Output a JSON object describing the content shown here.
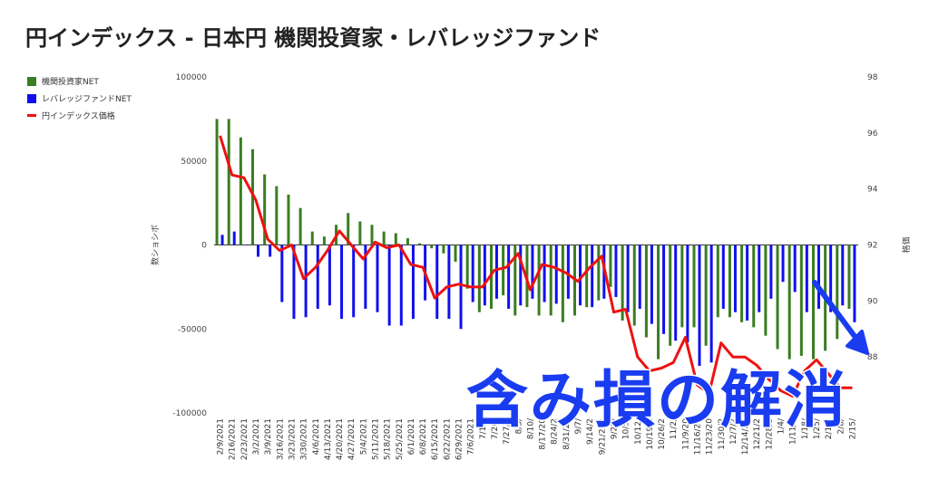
{
  "title": "円インデックス - 日本円 機関投資家・レバレッジファンド",
  "overlay_text": "含み損の解消",
  "chart_data": {
    "type": "bar",
    "xlabel": "",
    "ylabel": "数ショシボ",
    "y2label": "格価",
    "ylim": [
      -100000,
      100000
    ],
    "y2lim": [
      86,
      98
    ],
    "yticks": [
      "100000",
      "50000",
      "0",
      "-50000",
      "-100000"
    ],
    "y2ticks": [
      "98",
      "96",
      "94",
      "92",
      "90",
      "88"
    ],
    "xtick_labels": [
      "2/9/2021",
      "2/16/2021",
      "2/23/2021",
      "3/2/2021",
      "3/9/2021",
      "3/16/2021",
      "3/23/2021",
      "3/30/2021",
      "4/6/2021",
      "4/13/2021",
      "4/20/2021",
      "4/27/2021",
      "5/4/2021",
      "5/11/2021",
      "5/18/2021",
      "5/25/2021",
      "6/1/2021",
      "6/8/2021",
      "6/15/2021",
      "6/22/2021",
      "6/29/2021",
      "7/6/2021",
      "7/13/",
      "7/20/",
      "7/27/2",
      "8/3/",
      "8/10/",
      "8/17/20",
      "8/24/2",
      "8/31/20",
      "9/7/",
      "9/14/2",
      "9/21/202",
      "9/28/",
      "10/5/",
      "10/12/",
      "10/19/2",
      "10/26/2",
      "11/2/",
      "11/9/20",
      "11/16/20",
      "11/23/20",
      "11/30/2",
      "12/7/2",
      "12/14/20",
      "12/21/2",
      "12/28/2",
      "1/4/",
      "1/11/2",
      "1/18/",
      "1/25/",
      "2/1/2",
      "2/8/",
      "2/15/"
    ],
    "series": [
      {
        "name": "機関投資家NET",
        "axis": "left",
        "color": "#3a7d22",
        "values": [
          75000,
          75000,
          64000,
          57000,
          42000,
          35000,
          30000,
          22000,
          8000,
          5000,
          12000,
          19000,
          14000,
          12000,
          8000,
          7000,
          4000,
          1000,
          -2000,
          -5000,
          -10000,
          -26000,
          -40000,
          -38000,
          -30000,
          -42000,
          -37000,
          -42000,
          -42000,
          -46000,
          -42000,
          -37000,
          -33000,
          -25000,
          -45000,
          -48000,
          -55000,
          -68000,
          -60000,
          -49000,
          -49000,
          -60000,
          -43000,
          -43000,
          -46000,
          -49000,
          -54000,
          -62000,
          -68000,
          -66000,
          -68000,
          -63000,
          -56000,
          -38000
        ]
      },
      {
        "name": "レバレッジファンドNET",
        "axis": "left",
        "color": "#1010ee",
        "values": [
          6000,
          8000,
          0,
          -7000,
          -7000,
          -34000,
          -44000,
          -43000,
          -38000,
          -36000,
          -44000,
          -43000,
          -38000,
          -40000,
          -48000,
          -48000,
          -44000,
          -33000,
          -44000,
          -44000,
          -50000,
          -34000,
          -36000,
          -32000,
          -38000,
          -36000,
          -32000,
          -34000,
          -35000,
          -32000,
          -36000,
          -37000,
          -32000,
          -31000,
          -40000,
          -38000,
          -47000,
          -53000,
          -57000,
          -58000,
          -72000,
          -70000,
          -38000,
          -40000,
          -45000,
          -40000,
          -32000,
          -22000,
          -28000,
          -40000,
          -38000,
          -40000,
          -36000,
          -46000
        ]
      },
      {
        "name": "円インデックス価格",
        "axis": "right",
        "color": "#ee1111",
        "values": [
          95.9,
          94.5,
          94.4,
          93.6,
          92.2,
          91.8,
          92.0,
          90.8,
          91.2,
          91.8,
          92.5,
          92.0,
          91.5,
          92.1,
          91.9,
          92.0,
          91.3,
          91.2,
          90.1,
          90.5,
          90.6,
          90.5,
          90.5,
          91.1,
          91.2,
          91.7,
          90.4,
          91.3,
          91.2,
          91.0,
          90.7,
          91.2,
          91.6,
          89.6,
          89.7,
          88.0,
          87.5,
          87.6,
          87.8,
          88.7,
          87.0,
          86.7,
          88.5,
          88.0,
          88.0,
          87.7,
          87.2,
          86.8,
          86.6,
          87.5,
          87.9,
          87.4,
          86.9,
          86.9
        ]
      }
    ],
    "legend_position": "top-left",
    "grid": false
  },
  "colors": {
    "overlay": "#1a3cf0",
    "arrow": "#1a3cf0"
  }
}
